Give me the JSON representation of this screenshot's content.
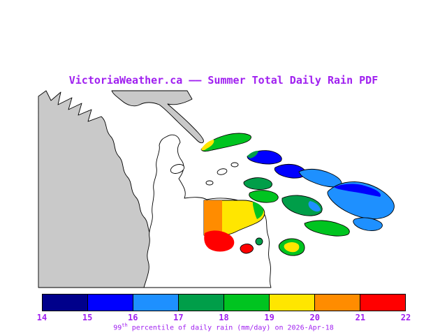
{
  "title": "VictoriaWeather.ca —— Summer Total Daily Rain PDF",
  "text_color": "#a020f0",
  "map": {
    "land_color": "#c9c9c9",
    "no_data_land_color": "#ffffff",
    "water_color": "#ffffff",
    "coastline_color": "#000000"
  },
  "colorbar": {
    "ticks": [
      "14",
      "15",
      "16",
      "17",
      "18",
      "19",
      "20",
      "21",
      "22"
    ],
    "segment_colors": [
      "#00008b",
      "#0000ff",
      "#1e90ff",
      "#009e49",
      "#00c420",
      "#ffe600",
      "#ff8c00",
      "#ff0000"
    ]
  },
  "caption": {
    "value": "99",
    "sup": "th",
    "rest": " percentile of daily rain (mm/day) on 2026-Apr-18"
  }
}
